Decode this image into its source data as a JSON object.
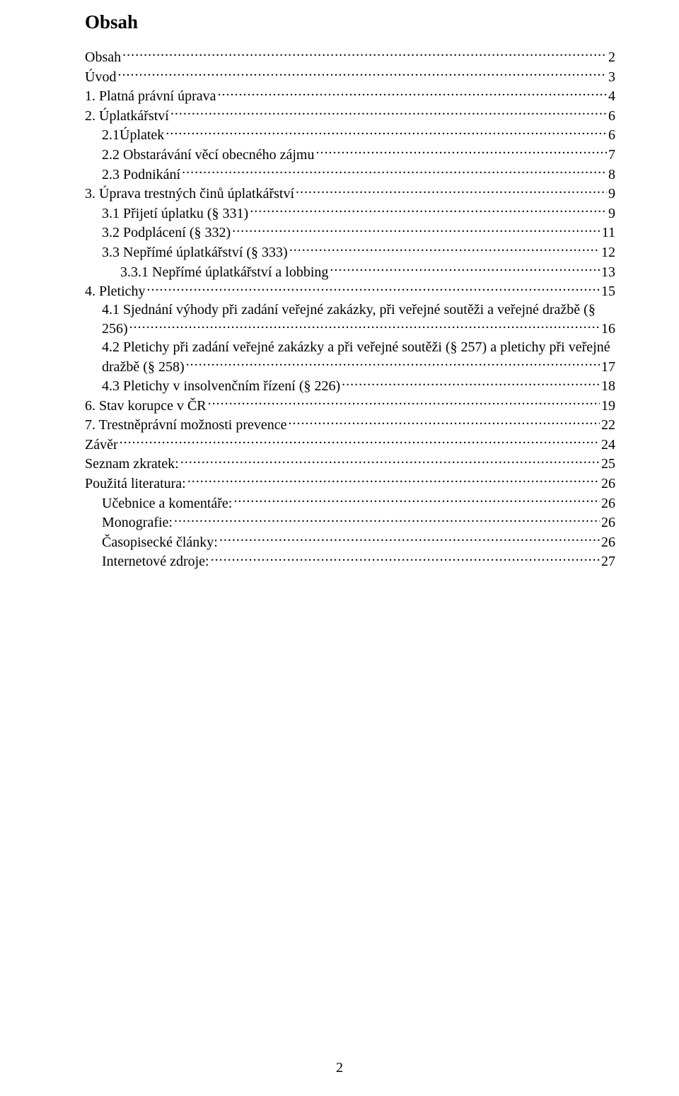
{
  "title": "Obsah",
  "footer_page_number": "2",
  "entries": [
    {
      "label": "Obsah",
      "page": "2",
      "indent": 0,
      "kind": "single"
    },
    {
      "label": "Úvod",
      "page": "3",
      "indent": 0,
      "kind": "single"
    },
    {
      "label": "1. Platná právní úprava",
      "page": "4",
      "indent": 0,
      "kind": "single"
    },
    {
      "label": "2. Úplatkářství",
      "page": "6",
      "indent": 0,
      "kind": "single"
    },
    {
      "label": "2.1Úplatek",
      "page": "6",
      "indent": 1,
      "kind": "single"
    },
    {
      "label": "2.2 Obstarávání věcí obecného zájmu",
      "page": "7",
      "indent": 1,
      "kind": "single"
    },
    {
      "label": "2.3 Podnikání",
      "page": "8",
      "indent": 1,
      "kind": "single"
    },
    {
      "label": "3. Úprava trestných činů úplatkářství",
      "page": "9",
      "indent": 0,
      "kind": "single"
    },
    {
      "label": "3.1 Přijetí úplatku (§ 331)",
      "page": "9",
      "indent": 1,
      "kind": "single"
    },
    {
      "label": "3.2 Podplácení (§ 332)",
      "page": "11",
      "indent": 1,
      "kind": "single"
    },
    {
      "label": "3.3 Nepřímé úplatkářství (§ 333)",
      "page": "12",
      "indent": 1,
      "kind": "single"
    },
    {
      "label": "3.3.1 Nepřímé úplatkářství a lobbing",
      "page": "13",
      "indent": 2,
      "kind": "single"
    },
    {
      "label": "4. Pletichy",
      "page": "15",
      "indent": 0,
      "kind": "single"
    },
    {
      "first": "4.1 Sjednání výhody při zadání veřejné zakázky, při veřejné soutěži a veřejné dražbě (§",
      "last": "256)",
      "page": "16",
      "indent": 1,
      "kind": "multi"
    },
    {
      "first": "4.2 Pletichy při zadání veřejné zakázky a při veřejné soutěži (§ 257) a pletichy při veřejné",
      "last": "dražbě (§ 258)",
      "page": "17",
      "indent": 1,
      "kind": "multi"
    },
    {
      "label": "4.3 Pletichy v insolvenčním řízení (§ 226)",
      "page": "18",
      "indent": 1,
      "kind": "single"
    },
    {
      "label": "6. Stav korupce v ČR",
      "page": "19",
      "indent": 0,
      "kind": "single"
    },
    {
      "label": "7. Trestněprávní možnosti prevence",
      "page": "22",
      "indent": 0,
      "kind": "single"
    },
    {
      "label": "Závěr",
      "page": "24",
      "indent": 0,
      "kind": "single"
    },
    {
      "label": "Seznam zkratek:",
      "page": "25",
      "indent": 0,
      "kind": "single"
    },
    {
      "label": "Použitá literatura:",
      "page": "26",
      "indent": 0,
      "kind": "single"
    },
    {
      "label": "Učebnice a komentáře:",
      "page": "26",
      "indent": 1,
      "kind": "single"
    },
    {
      "label": "Monografie:",
      "page": "26",
      "indent": 1,
      "kind": "single"
    },
    {
      "label": "Časopisecké články:",
      "page": "26",
      "indent": 1,
      "kind": "single"
    },
    {
      "label": "Internetové zdroje:",
      "page": "27",
      "indent": 1,
      "kind": "single"
    }
  ]
}
